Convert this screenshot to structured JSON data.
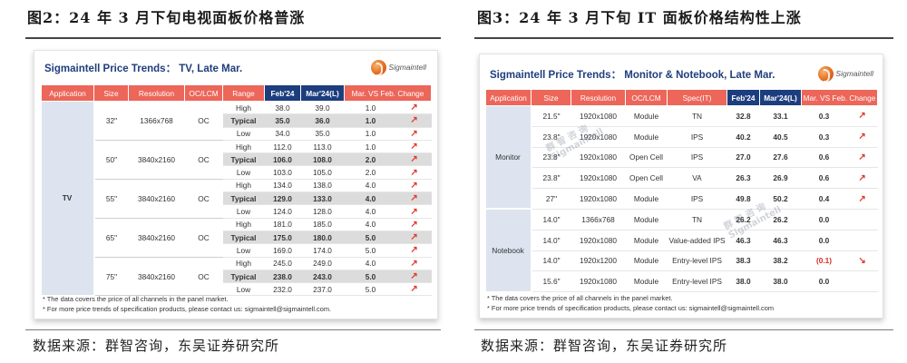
{
  "figure_left": {
    "title": "图2：24 年 3 月下旬电视面板价格普涨",
    "panel_title": "Sigmaintell Price Trends：  TV, Late Mar.",
    "logo": "Sigmaintell",
    "columns": [
      "Application",
      "Size",
      "Resolution",
      "OC/LCM",
      "Range",
      "Feb'24",
      "Mar'24(L)",
      "Mar. VS Feb. Change",
      ""
    ],
    "application": "TV",
    "groups": [
      {
        "size": "32\"",
        "resolution": "1366x768",
        "type": "OC",
        "rows": [
          {
            "range": "High",
            "feb": "38.0",
            "mar": "39.0",
            "chg": "1.0",
            "arrow": "up-right-arrow"
          },
          {
            "range": "Typical",
            "feb": "35.0",
            "mar": "36.0",
            "chg": "1.0",
            "arrow": "up-right-arrow"
          },
          {
            "range": "Low",
            "feb": "34.0",
            "mar": "35.0",
            "chg": "1.0",
            "arrow": "up-right-arrow"
          }
        ]
      },
      {
        "size": "50\"",
        "resolution": "3840x2160",
        "type": "OC",
        "rows": [
          {
            "range": "High",
            "feb": "112.0",
            "mar": "113.0",
            "chg": "1.0",
            "arrow": "up-right-arrow"
          },
          {
            "range": "Typical",
            "feb": "106.0",
            "mar": "108.0",
            "chg": "2.0",
            "arrow": "up-right-arrow"
          },
          {
            "range": "Low",
            "feb": "103.0",
            "mar": "105.0",
            "chg": "2.0",
            "arrow": "up-right-arrow"
          }
        ]
      },
      {
        "size": "55\"",
        "resolution": "3840x2160",
        "type": "OC",
        "rows": [
          {
            "range": "High",
            "feb": "134.0",
            "mar": "138.0",
            "chg": "4.0",
            "arrow": "up-right-arrow"
          },
          {
            "range": "Typical",
            "feb": "129.0",
            "mar": "133.0",
            "chg": "4.0",
            "arrow": "up-right-arrow"
          },
          {
            "range": "Low",
            "feb": "124.0",
            "mar": "128.0",
            "chg": "4.0",
            "arrow": "up-right-arrow"
          }
        ]
      },
      {
        "size": "65\"",
        "resolution": "3840x2160",
        "type": "OC",
        "rows": [
          {
            "range": "High",
            "feb": "181.0",
            "mar": "185.0",
            "chg": "4.0",
            "arrow": "up-right-arrow"
          },
          {
            "range": "Typical",
            "feb": "175.0",
            "mar": "180.0",
            "chg": "5.0",
            "arrow": "up-right-arrow"
          },
          {
            "range": "Low",
            "feb": "169.0",
            "mar": "174.0",
            "chg": "5.0",
            "arrow": "up-right-arrow"
          }
        ]
      },
      {
        "size": "75\"",
        "resolution": "3840x2160",
        "type": "OC",
        "rows": [
          {
            "range": "High",
            "feb": "245.0",
            "mar": "249.0",
            "chg": "4.0",
            "arrow": "up-right-arrow"
          },
          {
            "range": "Typical",
            "feb": "238.0",
            "mar": "243.0",
            "chg": "5.0",
            "arrow": "up-right-arrow"
          },
          {
            "range": "Low",
            "feb": "232.0",
            "mar": "237.0",
            "chg": "5.0",
            "arrow": "up-right-arrow"
          }
        ]
      }
    ],
    "notes": [
      "* The data covers the price of all channels in the panel market.",
      "* For more price trends of specification products, please contact us: sigmaintell@sigmaintell.com."
    ],
    "source": "数据来源：群智咨询，东吴证券研究所"
  },
  "figure_right": {
    "title": "图3：24 年 3 月下旬 IT 面板价格结构性上涨",
    "panel_title": "Sigmaintell Price Trends：  Monitor & Notebook, Late Mar.",
    "logo": "Sigmaintell",
    "columns": [
      "Application",
      "Size",
      "Resolution",
      "OC/LCM",
      "Spec(IT)",
      "Feb'24",
      "Mar'24(L)",
      "Mar. VS Feb. Change",
      ""
    ],
    "groups": [
      {
        "application": "Monitor",
        "rows": [
          {
            "size": "21.5\"",
            "resolution": "1920x1080",
            "type": "Module",
            "spec": "TN",
            "feb": "32.8",
            "mar": "33.1",
            "chg": "0.3",
            "arrow": "up-right-arrow"
          },
          {
            "size": "23.8\"",
            "resolution": "1920x1080",
            "type": "Module",
            "spec": "IPS",
            "feb": "40.2",
            "mar": "40.5",
            "chg": "0.3",
            "arrow": "up-right-arrow"
          },
          {
            "size": "23.8\"",
            "resolution": "1920x1080",
            "type": "Open Cell",
            "spec": "IPS",
            "feb": "27.0",
            "mar": "27.6",
            "chg": "0.6",
            "arrow": "up-right-arrow"
          },
          {
            "size": "23.8\"",
            "resolution": "1920x1080",
            "type": "Open Cell",
            "spec": "VA",
            "feb": "26.3",
            "mar": "26.9",
            "chg": "0.6",
            "arrow": "up-right-arrow"
          },
          {
            "size": "27\"",
            "resolution": "1920x1080",
            "type": "Module",
            "spec": "IPS",
            "feb": "49.8",
            "mar": "50.2",
            "chg": "0.4",
            "arrow": "up-right-arrow"
          }
        ]
      },
      {
        "application": "Notebook",
        "rows": [
          {
            "size": "14.0\"",
            "resolution": "1366x768",
            "type": "Module",
            "spec": "TN",
            "feb": "26.2",
            "mar": "26.2",
            "chg": "0.0",
            "arrow": ""
          },
          {
            "size": "14.0\"",
            "resolution": "1920x1080",
            "type": "Module",
            "spec": "Value-added IPS",
            "feb": "46.3",
            "mar": "46.3",
            "chg": "0.0",
            "arrow": ""
          },
          {
            "size": "14.0\"",
            "resolution": "1920x1200",
            "type": "Module",
            "spec": "Entry-level IPS",
            "feb": "38.3",
            "mar": "38.2",
            "chg": "(0.1)",
            "arrow": "down-right-arrow"
          },
          {
            "size": "15.6\"",
            "resolution": "1920x1080",
            "type": "Module",
            "spec": "Entry-level IPS",
            "feb": "38.0",
            "mar": "38.0",
            "chg": "0.0",
            "arrow": ""
          }
        ]
      }
    ],
    "notes": [
      "* The data covers the price of all channels in the panel market.",
      "* For more price trends of specification products, please contact us: sigmaintell@sigmaintell.com"
    ],
    "source": "数据来源：群智咨询，东吴证券研究所",
    "watermark": [
      "群 智 咨 询",
      "Sigmaintell"
    ]
  }
}
